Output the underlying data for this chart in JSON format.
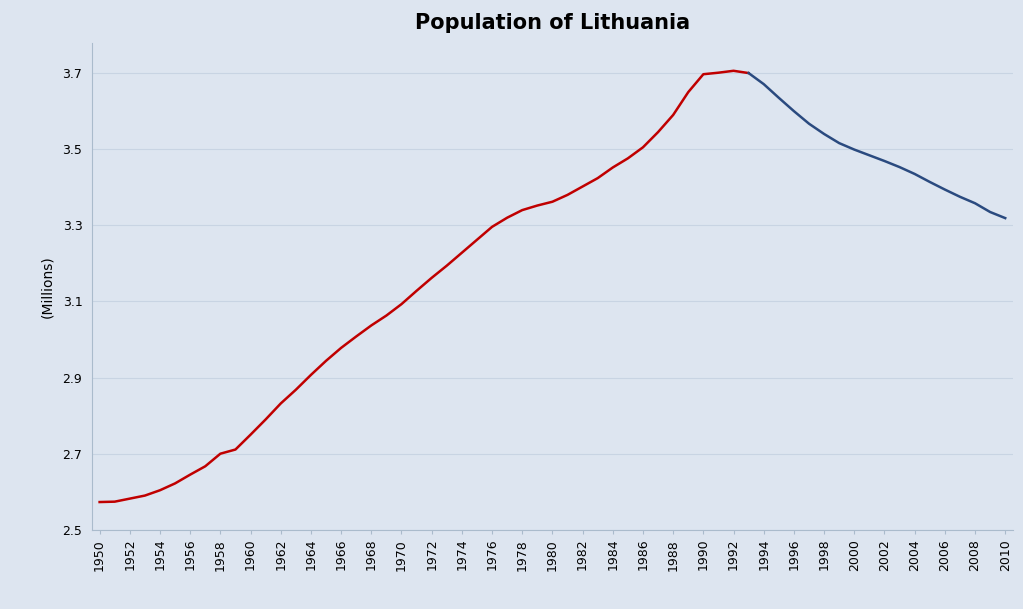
{
  "title": "Population of Lithuania",
  "ylabel": "(Millions)",
  "plot_bg_color": "#dde5f0",
  "fig_bg_color": "#dde5f0",
  "line_color_red": "#c00000",
  "line_color_blue": "#2a4a7f",
  "line_width": 1.8,
  "ylim": [
    2.5,
    3.78
  ],
  "yticks": [
    2.5,
    2.7,
    2.9,
    3.1,
    3.3,
    3.5,
    3.7
  ],
  "years": [
    1950,
    1951,
    1952,
    1953,
    1954,
    1955,
    1956,
    1957,
    1958,
    1959,
    1960,
    1961,
    1962,
    1963,
    1964,
    1965,
    1966,
    1967,
    1968,
    1969,
    1970,
    1971,
    1972,
    1973,
    1974,
    1975,
    1976,
    1977,
    1978,
    1979,
    1980,
    1981,
    1982,
    1983,
    1984,
    1985,
    1986,
    1987,
    1988,
    1989,
    1990,
    1991,
    1992,
    1993,
    1994,
    1995,
    1996,
    1997,
    1998,
    1999,
    2000,
    2001,
    2002,
    2003,
    2004,
    2005,
    2006,
    2007,
    2008,
    2009,
    2010
  ],
  "population": [
    2.573,
    2.574,
    2.582,
    2.59,
    2.604,
    2.622,
    2.645,
    2.667,
    2.7,
    2.711,
    2.75,
    2.79,
    2.832,
    2.868,
    2.907,
    2.944,
    2.978,
    3.008,
    3.037,
    3.063,
    3.093,
    3.128,
    3.162,
    3.194,
    3.228,
    3.262,
    3.296,
    3.32,
    3.34,
    3.352,
    3.362,
    3.38,
    3.402,
    3.424,
    3.452,
    3.476,
    3.505,
    3.545,
    3.59,
    3.65,
    3.697,
    3.701,
    3.706,
    3.7,
    3.671,
    3.635,
    3.6,
    3.567,
    3.54,
    3.516,
    3.499,
    3.484,
    3.469,
    3.453,
    3.435,
    3.414,
    3.394,
    3.375,
    3.358,
    3.335,
    3.319
  ],
  "split_year": 1993,
  "xtick_years": [
    1950,
    1952,
    1954,
    1956,
    1958,
    1960,
    1962,
    1964,
    1966,
    1968,
    1970,
    1972,
    1974,
    1976,
    1978,
    1980,
    1982,
    1984,
    1986,
    1988,
    1990,
    1992,
    1994,
    1996,
    1998,
    2000,
    2002,
    2004,
    2006,
    2008,
    2010
  ],
  "title_fontsize": 15,
  "label_fontsize": 10,
  "tick_fontsize": 9,
  "grid_color": "#c8d4e3",
  "spine_color": "#aabbcc",
  "xlim": [
    1949.5,
    2010.5
  ]
}
